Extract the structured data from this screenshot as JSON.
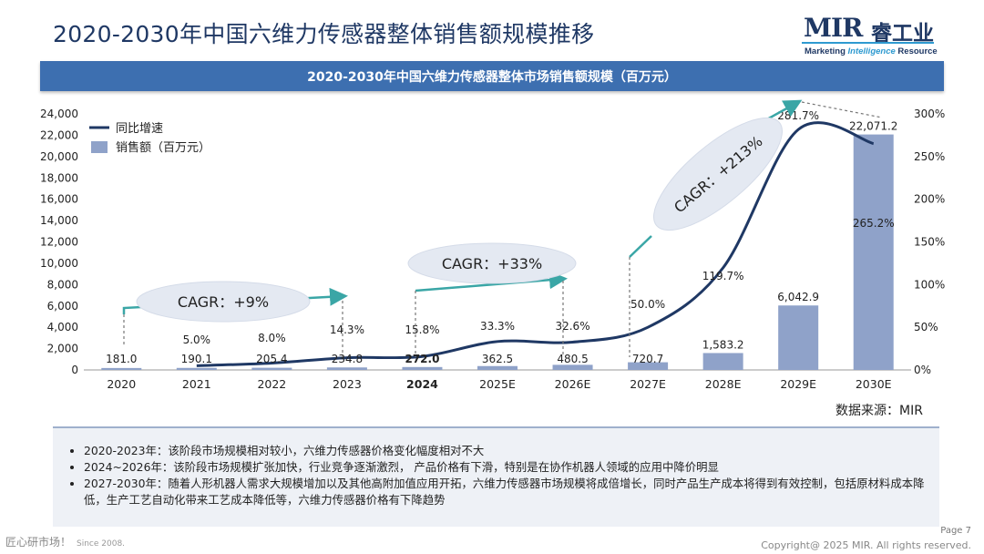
{
  "page_title": "2020-2030年中国六维力传感器整体销售额规模推移",
  "logo": {
    "brand": "MIR",
    "cn": "睿工业",
    "sub_before": "Marketing ",
    "sub_italic": "Intelligence",
    "sub_after": " Resource"
  },
  "banner_title": "2020-2030年中国六维力传感器整体市场销售额规模（百万元）",
  "chart_data": {
    "type": "bar",
    "title": "2020-2030年中国六维力传感器整体市场销售额规模（百万元）",
    "categories": [
      "2020",
      "2021",
      "2022",
      "2023",
      "2024",
      "2025E",
      "2026E",
      "2027E",
      "2028E",
      "2029E",
      "2030E"
    ],
    "highlight_category": "2024",
    "series": [
      {
        "name": "销售额（百万元）",
        "kind": "bar",
        "axis": "left",
        "color": "#8fa2c9",
        "values": [
          181.0,
          190.1,
          205.4,
          234.8,
          272.0,
          362.5,
          480.5,
          720.7,
          1583.2,
          6042.9,
          22071.2
        ],
        "labels": [
          "181.0",
          "190.1",
          "205.4",
          "234.8",
          "272.0",
          "362.5",
          "480.5",
          "720.7",
          "1,583.2",
          "6,042.9",
          "22,071.2"
        ]
      },
      {
        "name": "同比增速",
        "kind": "line",
        "axis": "right",
        "color": "#1f3864",
        "values": [
          null,
          5.0,
          8.0,
          14.3,
          15.8,
          33.3,
          32.6,
          50.0,
          119.7,
          281.7,
          265.2
        ],
        "labels": [
          "",
          "5.0%",
          "8.0%",
          "14.3%",
          "15.8%",
          "33.3%",
          "32.6%",
          "50.0%",
          "119.7%",
          "281.7%",
          "265.2%"
        ]
      }
    ],
    "y_left": {
      "min": 0,
      "max": 24000,
      "step": 2000,
      "tick_labels": [
        "0",
        "2,000",
        "4,000",
        "6,000",
        "8,000",
        "10,000",
        "12,000",
        "14,000",
        "16,000",
        "18,000",
        "20,000",
        "22,000",
        "24,000"
      ]
    },
    "y_right": {
      "min": 0,
      "max": 300,
      "step": 50,
      "tick_labels": [
        "0%",
        "50%",
        "100%",
        "150%",
        "200%",
        "250%",
        "300%"
      ]
    },
    "legend_position": "top-left",
    "annotations": [
      {
        "text": "CAGR：+9%",
        "from": "2020",
        "to": "2023"
      },
      {
        "text": "CAGR：+33%",
        "from": "2024",
        "to": "2026E"
      },
      {
        "text": "CAGR：+213%",
        "from": "2027E",
        "to": "2030E"
      }
    ]
  },
  "source": "数据来源：MIR",
  "notes": [
    "2020-2023年：该阶段市场规模相对较小，六维力传感器价格变化幅度相对不大",
    "2024~2026年：该阶段市场规模扩张加快，行业竞争逐渐激烈， 产品价格有下滑，特别是在协作机器人领域的应用中降价明显",
    "2027-2030年：随着人形机器人需求大规模增加以及其他高附加值应用开拓，六维力传感器市场规模将成倍增长，同时产品生产成本将得到有效控制，包括原材料成本降低，生产工艺自动化带来工艺成本降低等，六维力传感器价格有下降趋势"
  ],
  "footer": {
    "left": "匠心研市场！",
    "since": "Since 2008.",
    "page": "Page 7",
    "copyright": "Copyright@ 2025 MIR. All rights reserved."
  }
}
